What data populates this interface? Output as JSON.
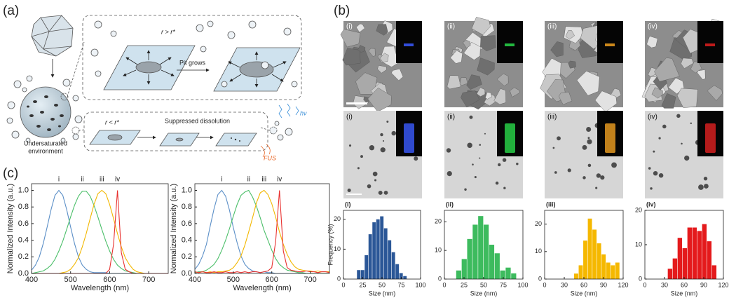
{
  "panels": [
    "(a)",
    "(b)",
    "(c)"
  ],
  "diagram": {
    "top_condition": "r > r*",
    "pit_grows": "Pit grows",
    "bottom_condition": "r < r*",
    "suppressed": "Suppressed dissolution",
    "environment": [
      "Undersaturated",
      "environment"
    ],
    "light": "hν",
    "ultrasound": "FUS"
  },
  "micrographs": {
    "sem_labels": [
      "(i)",
      "(ii)",
      "(iii)",
      "(iv)"
    ],
    "tem_labels": [
      "(i)",
      "(ii)",
      "(iii)",
      "(iv)"
    ]
  },
  "chart_data": [
    {
      "type": "histogram",
      "title": "(i)",
      "color": "#2b5797",
      "bins": [
        17.5,
        22.5,
        27.5,
        32.5,
        37.5,
        42.5,
        47.5,
        52.5,
        57.5,
        62.5,
        67.5,
        72.5,
        77.5,
        82.5
      ],
      "values": [
        3,
        3,
        8,
        15,
        19,
        20,
        21,
        17,
        13,
        9,
        5,
        2,
        1
      ],
      "xlim": [
        0,
        100
      ],
      "xticks": [
        0,
        25,
        50,
        75,
        100
      ],
      "ylim": [
        0,
        23
      ],
      "yticks": [
        0,
        10,
        20
      ],
      "x_label": "Size (nm)",
      "y_label": "Frequency (%)"
    },
    {
      "type": "histogram",
      "title": "(ii)",
      "color": "#3dbb5e",
      "bins": [
        15,
        22,
        29,
        36,
        43,
        50,
        57,
        64,
        71,
        78,
        85,
        92
      ],
      "values": [
        3,
        7,
        14,
        19,
        22,
        19,
        12,
        9,
        3,
        4,
        2
      ],
      "xlim": [
        0,
        100
      ],
      "xticks": [
        0,
        25,
        50,
        75,
        100
      ],
      "ylim": [
        0,
        24
      ],
      "yticks": [
        0,
        10,
        20
      ],
      "x_label": "Size (nm)"
    },
    {
      "type": "histogram",
      "title": "(iii)",
      "color": "#f5b800",
      "bins": [
        45,
        52,
        59,
        66,
        73,
        80,
        87,
        94,
        101,
        108,
        115
      ],
      "values": [
        2,
        5,
        14,
        22,
        18,
        13,
        9,
        6,
        5,
        6
      ],
      "xlim": [
        0,
        120
      ],
      "xticks": [
        0,
        30,
        60,
        90,
        120
      ],
      "ylim": [
        0,
        25
      ],
      "yticks": [
        0,
        10,
        20
      ],
      "x_label": "Size (nm)"
    },
    {
      "type": "histogram",
      "title": "(iv)",
      "color": "#e41a1c",
      "bins": [
        35,
        42.5,
        50,
        57.5,
        65,
        72.5,
        80,
        87.5,
        95,
        102.5,
        110
      ],
      "values": [
        3,
        6,
        12,
        9,
        15,
        15,
        14,
        16,
        11,
        4
      ],
      "xlim": [
        0,
        120
      ],
      "xticks": [
        0,
        30,
        60,
        90,
        120
      ],
      "ylim": [
        0,
        20
      ],
      "yticks": [
        0,
        10,
        20
      ],
      "x_label": "Size (nm)"
    },
    {
      "type": "line",
      "x": [
        400,
        410,
        420,
        430,
        440,
        450,
        460,
        470,
        480,
        490,
        500,
        510,
        520,
        530,
        540,
        550,
        560,
        570,
        580,
        590,
        600,
        610,
        620,
        630,
        640,
        650,
        660,
        670,
        680,
        690,
        700,
        710,
        720,
        730,
        740,
        750
      ],
      "series": [
        {
          "name": "i",
          "color": "#5b8fc7",
          "values": [
            0.04,
            0.1,
            0.2,
            0.36,
            0.56,
            0.77,
            0.94,
            1.0,
            0.94,
            0.77,
            0.56,
            0.36,
            0.2,
            0.1,
            0.05,
            0.02,
            0.01,
            0.01,
            0.01,
            0.01,
            0,
            0,
            0,
            0,
            0,
            0,
            0,
            0,
            0,
            0,
            0,
            0,
            0,
            0,
            0,
            0
          ]
        },
        {
          "name": "ii",
          "color": "#4cbf6a",
          "values": [
            0,
            0.01,
            0.02,
            0.03,
            0.06,
            0.1,
            0.17,
            0.27,
            0.39,
            0.53,
            0.68,
            0.82,
            0.93,
            0.99,
            0.99,
            0.93,
            0.82,
            0.68,
            0.53,
            0.39,
            0.27,
            0.17,
            0.1,
            0.06,
            0.03,
            0.02,
            0.01,
            0,
            0,
            0,
            0,
            0,
            0,
            0,
            0,
            0
          ]
        },
        {
          "name": "iii",
          "color": "#f2b700",
          "values": [
            0,
            0,
            0,
            0,
            0,
            0,
            0,
            0,
            0.01,
            0.02,
            0.05,
            0.11,
            0.19,
            0.32,
            0.48,
            0.66,
            0.83,
            0.96,
            1.0,
            0.96,
            0.83,
            0.66,
            0.48,
            0.32,
            0.19,
            0.11,
            0.05,
            0.02,
            0.01,
            0,
            0,
            0,
            0,
            0,
            0,
            0
          ]
        },
        {
          "name": "iv",
          "color": "#e8312f",
          "values": [
            0,
            0,
            0,
            0,
            0,
            0,
            0,
            0,
            0,
            0,
            0,
            0,
            0,
            0,
            0,
            0,
            0,
            0,
            0,
            0,
            0.05,
            0.35,
            1.0,
            0.25,
            0.05,
            0.02,
            0,
            0,
            0,
            0,
            0,
            0,
            0,
            0,
            0,
            0
          ]
        }
      ],
      "xlim": [
        400,
        750
      ],
      "xticks": [
        400,
        500,
        600,
        700
      ],
      "ylim": [
        0,
        1.08
      ],
      "yticks": [
        {
          "value": 0,
          "label": "0.0"
        },
        0.2,
        0.4,
        0.6,
        0.8,
        {
          "value": 1,
          "label": "1.0"
        }
      ],
      "x_label": "Wavelength (nm)",
      "y_label": "Normalized Intensity (a.u.)"
    },
    {
      "type": "line",
      "x": [
        400,
        410,
        420,
        430,
        440,
        450,
        460,
        470,
        480,
        490,
        500,
        510,
        520,
        530,
        540,
        550,
        560,
        570,
        580,
        590,
        600,
        610,
        620,
        630,
        640,
        650,
        660,
        670,
        680,
        690,
        700,
        710,
        720,
        730,
        740,
        750
      ],
      "series": [
        {
          "name": "i",
          "color": "#5b8fc7",
          "values": [
            0.05,
            0.11,
            0.21,
            0.35,
            0.57,
            0.78,
            0.95,
            1.0,
            0.93,
            0.76,
            0.55,
            0.37,
            0.21,
            0.11,
            0.06,
            0.03,
            0.02,
            0.01,
            0.02,
            0.01,
            0.01,
            0,
            0,
            0,
            0,
            0,
            0,
            0,
            0,
            0,
            0,
            0,
            0,
            0,
            0,
            0
          ]
        },
        {
          "name": "ii",
          "color": "#4cbf6a",
          "values": [
            0.01,
            0.02,
            0.02,
            0.04,
            0.07,
            0.11,
            0.18,
            0.28,
            0.4,
            0.54,
            0.69,
            0.83,
            0.94,
            0.98,
            1.0,
            0.92,
            0.81,
            0.67,
            0.52,
            0.4,
            0.28,
            0.18,
            0.11,
            0.07,
            0.04,
            0.03,
            0.02,
            0.01,
            0.01,
            0,
            0,
            0,
            0,
            0,
            0,
            0
          ]
        },
        {
          "name": "iii",
          "color": "#f2b700",
          "values": [
            0.02,
            0.01,
            0.02,
            0.01,
            0.02,
            0.01,
            0.02,
            0.02,
            0.03,
            0.04,
            0.07,
            0.13,
            0.21,
            0.34,
            0.5,
            0.67,
            0.85,
            0.97,
            1.0,
            0.95,
            0.84,
            0.68,
            0.5,
            0.35,
            0.23,
            0.14,
            0.08,
            0.05,
            0.04,
            0.03,
            0.03,
            0.02,
            0.03,
            0.02,
            0.02,
            0.02
          ]
        },
        {
          "name": "iv",
          "color": "#e8312f",
          "values": [
            0.02,
            0.01,
            0.02,
            0.01,
            0.01,
            0.02,
            0.01,
            0.01,
            0.02,
            0.01,
            0.01,
            0.02,
            0.01,
            0.02,
            0.01,
            0.02,
            0.02,
            0.01,
            0.02,
            0.03,
            0.07,
            0.38,
            1.0,
            0.27,
            0.07,
            0.04,
            0.03,
            0.02,
            0.02,
            0.03,
            0.02,
            0.02,
            0.01,
            0.02,
            0.02,
            0.01
          ]
        }
      ],
      "xlim": [
        400,
        750
      ],
      "xticks": [
        400,
        500,
        600,
        700
      ],
      "ylim": [
        0,
        1.08
      ],
      "yticks": [
        {
          "value": 0,
          "label": "0.0"
        },
        0.2,
        0.4,
        0.6,
        0.8,
        {
          "value": 1,
          "label": "1.0"
        }
      ],
      "x_label": "Wavelength (nm)",
      "y_label": "Normalized Intensity (a.u.)"
    }
  ]
}
